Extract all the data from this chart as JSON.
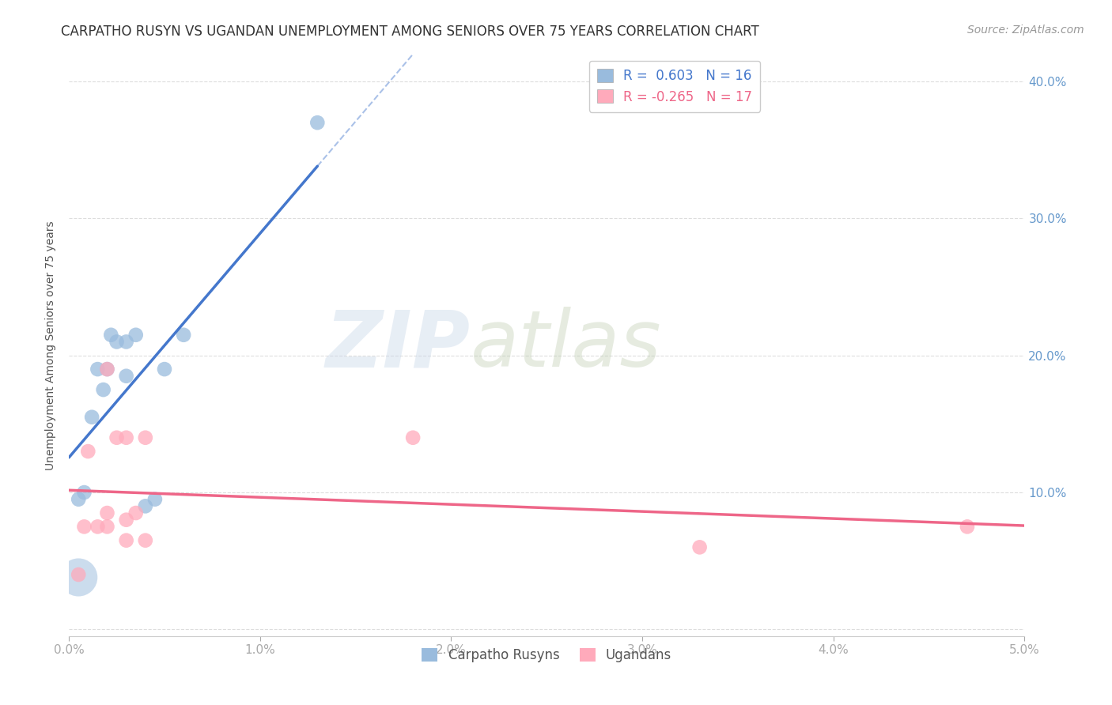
{
  "title": "CARPATHO RUSYN VS UGANDAN UNEMPLOYMENT AMONG SENIORS OVER 75 YEARS CORRELATION CHART",
  "source": "Source: ZipAtlas.com",
  "ylabel": "Unemployment Among Seniors over 75 years",
  "xlim": [
    0.0,
    0.05
  ],
  "ylim": [
    -0.005,
    0.42
  ],
  "xticks": [
    0.0,
    0.01,
    0.02,
    0.03,
    0.04,
    0.05
  ],
  "xticklabels": [
    "0.0%",
    "1.0%",
    "2.0%",
    "3.0%",
    "4.0%",
    "5.0%"
  ],
  "yticks": [
    0.0,
    0.1,
    0.2,
    0.3,
    0.4
  ],
  "yticklabels_right": [
    "",
    "10.0%",
    "20.0%",
    "30.0%",
    "40.0%"
  ],
  "r_blue": 0.603,
  "n_blue": 16,
  "r_pink": -0.265,
  "n_pink": 17,
  "blue_color": "#99BBDD",
  "pink_color": "#FFAABB",
  "blue_line_color": "#4477CC",
  "pink_line_color": "#EE6688",
  "watermark_zip": "ZIP",
  "watermark_atlas": "atlas",
  "carpatho_x": [
    0.0005,
    0.0008,
    0.0012,
    0.0015,
    0.0018,
    0.002,
    0.0022,
    0.0025,
    0.003,
    0.003,
    0.0035,
    0.004,
    0.0045,
    0.005,
    0.006,
    0.013
  ],
  "carpatho_y": [
    0.095,
    0.1,
    0.155,
    0.19,
    0.175,
    0.19,
    0.215,
    0.21,
    0.185,
    0.21,
    0.215,
    0.09,
    0.095,
    0.19,
    0.215,
    0.37
  ],
  "ugandan_x": [
    0.0005,
    0.0008,
    0.001,
    0.0015,
    0.002,
    0.002,
    0.002,
    0.0025,
    0.003,
    0.003,
    0.003,
    0.0035,
    0.004,
    0.004,
    0.018,
    0.033,
    0.047
  ],
  "ugandan_y": [
    0.04,
    0.075,
    0.13,
    0.075,
    0.075,
    0.085,
    0.19,
    0.14,
    0.065,
    0.08,
    0.14,
    0.085,
    0.065,
    0.14,
    0.14,
    0.06,
    0.075
  ],
  "carpatho_big_x": [
    0.0005
  ],
  "carpatho_big_y": [
    0.038
  ],
  "background_color": "#ffffff",
  "grid_color": "#dddddd",
  "title_fontsize": 12,
  "tick_fontsize": 11
}
